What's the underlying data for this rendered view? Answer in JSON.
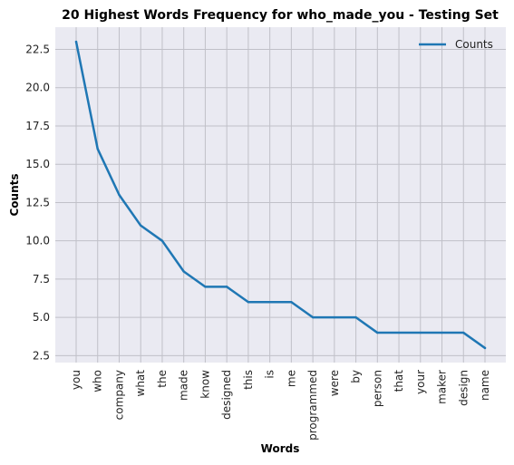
{
  "chart_data": {
    "type": "line",
    "title": "20 Highest Words Frequency for who_made_you - Testing Set",
    "xlabel": "Words",
    "ylabel": "Counts",
    "categories": [
      "you",
      "who",
      "company",
      "what",
      "the",
      "made",
      "know",
      "designed",
      "this",
      "is",
      "me",
      "programmed",
      "were",
      "by",
      "person",
      "that",
      "your",
      "maker",
      "design",
      "name"
    ],
    "series": [
      {
        "name": "Counts",
        "values": [
          23,
          16,
          13,
          11,
          10,
          8,
          7,
          7,
          6,
          6,
          6,
          5,
          5,
          5,
          4,
          4,
          4,
          4,
          4,
          3
        ]
      }
    ],
    "ylim": [
      2.05,
      23.95
    ],
    "yticks": [
      2.5,
      5.0,
      7.5,
      10.0,
      12.5,
      15.0,
      17.5,
      20.0,
      22.5
    ],
    "ytick_labels": [
      "2.5",
      "5.0",
      "7.5",
      "10.0",
      "12.5",
      "15.0",
      "17.5",
      "20.0",
      "22.5"
    ],
    "grid": true,
    "legend_position": "top-right",
    "colors": {
      "line": "#1f77b4",
      "plot_background": "#eaeaf2",
      "grid": "#c0c0c8"
    }
  }
}
